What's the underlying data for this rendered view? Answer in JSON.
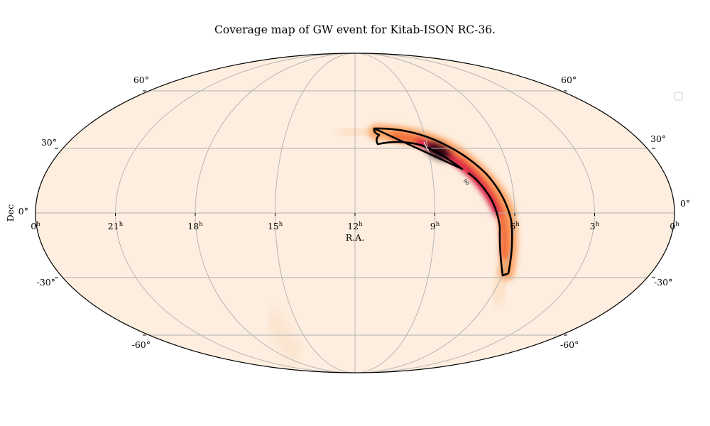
{
  "chart_data": {
    "type": "heatmap",
    "projection": "mollweide",
    "title": "Coverage map of GW event for Kitab-ISON RC-36.",
    "xlabel": "R.A.",
    "ylabel": "Dec",
    "ra_ticks": [
      {
        "label": "0",
        "sup": "h",
        "hours": 24
      },
      {
        "label": "21",
        "sup": "h",
        "hours": 21
      },
      {
        "label": "18",
        "sup": "h",
        "hours": 18
      },
      {
        "label": "15",
        "sup": "h",
        "hours": 15
      },
      {
        "label": "12",
        "sup": "h",
        "hours": 12
      },
      {
        "label": "9",
        "sup": "h",
        "hours": 9
      },
      {
        "label": "6",
        "sup": "h",
        "hours": 6
      },
      {
        "label": "3",
        "sup": "h",
        "hours": 3
      },
      {
        "label": "0",
        "sup": "h",
        "hours": 0
      }
    ],
    "dec_ticks": [
      {
        "label": "60°",
        "deg": 60
      },
      {
        "label": "30°",
        "deg": 30
      },
      {
        "label": "0°",
        "deg": 0
      },
      {
        "label": "-30°",
        "deg": -30
      },
      {
        "label": "-60°",
        "deg": -60
      }
    ],
    "contour_label": "90",
    "grid": true,
    "legend": "top-right (empty)",
    "colormap": {
      "low": "#fdeedf",
      "mid": "#fb8c3c",
      "high": "#d7194b",
      "peak": "#000000"
    },
    "probability_arc": {
      "ra_hours": [
        10.3,
        9.6,
        9.0,
        8.4,
        7.8,
        7.2,
        6.7,
        6.3,
        6.1,
        6.05
      ],
      "dec_deg": [
        32,
        30,
        27,
        22,
        15,
        6,
        -4,
        -14,
        -22,
        -28
      ],
      "peak_ra_hours": 8.7,
      "peak_dec_deg": 25
    }
  }
}
